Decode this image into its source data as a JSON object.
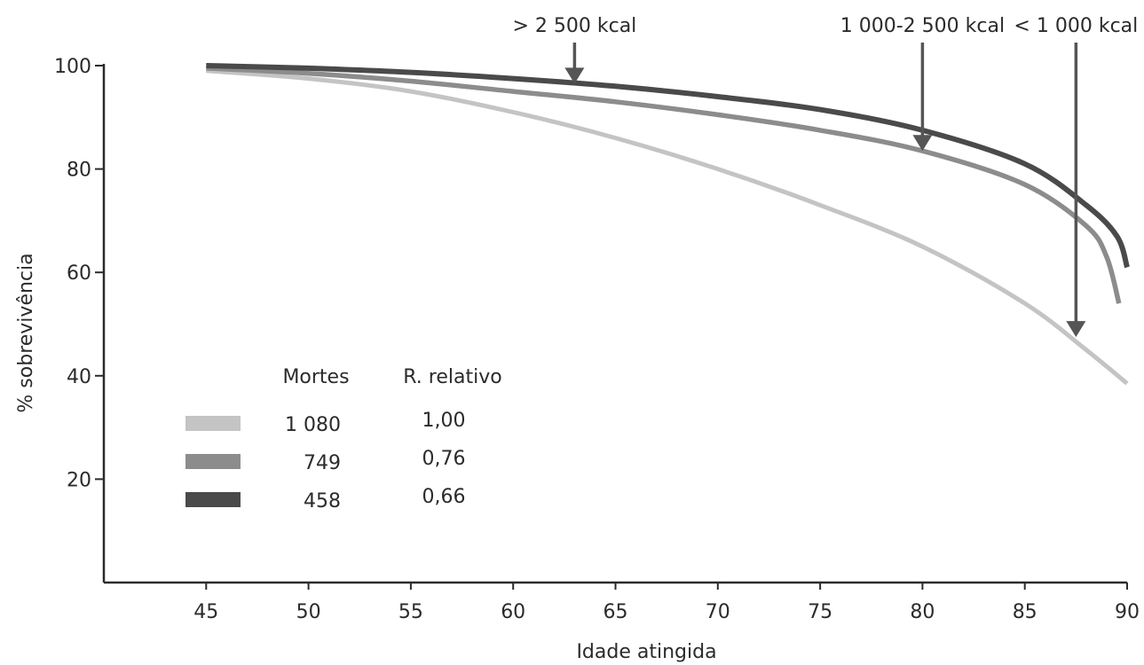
{
  "chart_data": {
    "type": "line",
    "title": "",
    "xlabel": "Idade atingida",
    "ylabel": "% sobrevivência",
    "xlim": [
      40,
      90
    ],
    "ylim": [
      0,
      100
    ],
    "xticks": [
      45,
      50,
      55,
      60,
      65,
      70,
      75,
      80,
      85,
      90
    ],
    "yticks": [
      20,
      40,
      60,
      80,
      100
    ],
    "grid": false,
    "series": [
      {
        "color": "#c4c4c4",
        "points": [
          [
            45,
            99
          ],
          [
            50,
            97.5
          ],
          [
            55,
            95
          ],
          [
            60,
            91
          ],
          [
            65,
            86
          ],
          [
            70,
            80
          ],
          [
            75,
            73
          ],
          [
            80,
            65
          ],
          [
            85,
            54
          ],
          [
            88,
            45
          ],
          [
            90,
            38.5
          ]
        ]
      },
      {
        "color": "#8c8c8c",
        "points": [
          [
            45,
            99.5
          ],
          [
            50,
            98.5
          ],
          [
            55,
            97
          ],
          [
            60,
            95
          ],
          [
            65,
            93
          ],
          [
            70,
            90.5
          ],
          [
            75,
            87.5
          ],
          [
            80,
            83.5
          ],
          [
            85,
            77
          ],
          [
            88,
            69
          ],
          [
            89,
            63
          ],
          [
            89.6,
            54
          ]
        ]
      },
      {
        "color": "#4a4a4a",
        "points": [
          [
            45,
            100
          ],
          [
            50,
            99.5
          ],
          [
            55,
            98.7
          ],
          [
            60,
            97.5
          ],
          [
            65,
            96
          ],
          [
            70,
            94
          ],
          [
            75,
            91.5
          ],
          [
            80,
            87.5
          ],
          [
            85,
            81
          ],
          [
            88,
            73
          ],
          [
            89.5,
            67
          ],
          [
            90,
            61
          ]
        ]
      }
    ],
    "annotations": [
      {
        "text": "> 2 500 kcal",
        "x": 63,
        "y": 96.5
      },
      {
        "text": "1 000-2 500 kcal",
        "x": 80,
        "y": 83.5
      },
      {
        "text": "< 1 000 kcal",
        "x": 87.5,
        "y": 47.5
      }
    ],
    "legend": {
      "placement": "lower-left",
      "headers": [
        "Mortes",
        "R. relativo"
      ],
      "rows": [
        {
          "color": "#c4c4c4",
          "deaths": "1 080",
          "relative_risk": "1,00"
        },
        {
          "color": "#8c8c8c",
          "deaths": "749",
          "relative_risk": "0,76"
        },
        {
          "color": "#4a4a4a",
          "deaths": "458",
          "relative_risk": "0,66"
        }
      ]
    }
  }
}
